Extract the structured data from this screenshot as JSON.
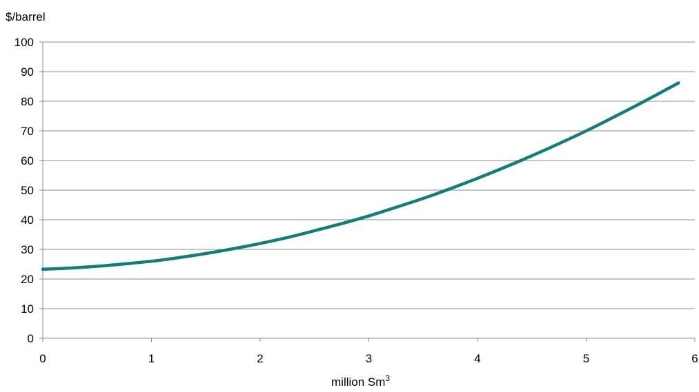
{
  "chart_data": {
    "type": "line",
    "ylabel": "$/barrel",
    "xlabel_main": "million Sm",
    "xlabel_sup": "3",
    "xlim": [
      0,
      6
    ],
    "ylim": [
      0,
      100
    ],
    "xticks": [
      "0",
      "1",
      "2",
      "3",
      "4",
      "5",
      "6"
    ],
    "yticks": [
      "0",
      "10",
      "20",
      "30",
      "40",
      "50",
      "60",
      "70",
      "80",
      "90",
      "100"
    ],
    "grid": "horizontal",
    "legend": "none",
    "series": [
      {
        "color": "#0f7f7a",
        "x": [
          0,
          0.25,
          0.5,
          0.75,
          1,
          1.25,
          1.5,
          1.75,
          2,
          2.25,
          2.5,
          2.75,
          3,
          3.25,
          3.5,
          3.75,
          4,
          4.25,
          4.5,
          4.75,
          5,
          5.25,
          5.5,
          5.85
        ],
        "y": [
          23.3,
          23.7,
          24.3,
          25.1,
          26.0,
          27.2,
          28.6,
          30.2,
          32.0,
          34.0,
          36.3,
          38.7,
          41.3,
          44.2,
          47.2,
          50.5,
          54.0,
          57.7,
          61.6,
          65.7,
          70.0,
          74.6,
          79.3,
          86.2
        ]
      }
    ]
  }
}
